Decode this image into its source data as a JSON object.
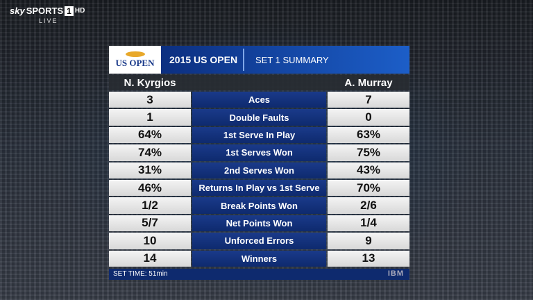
{
  "broadcaster": {
    "brand": "sky",
    "channel": "SPORTS",
    "number": "1",
    "hd": "HD",
    "status": "LIVE"
  },
  "header": {
    "logo": "US OPEN",
    "event": "2015 US OPEN",
    "title": "SET 1 SUMMARY"
  },
  "players": [
    "N. Kyrgios",
    "A. Murray"
  ],
  "table": {
    "rows": [
      [
        "3",
        "Aces",
        "7"
      ],
      [
        "1",
        "Double Faults",
        "0"
      ],
      [
        "64%",
        "1st Serve In Play",
        "63%"
      ],
      [
        "74%",
        "1st Serves Won",
        "75%"
      ],
      [
        "31%",
        "2nd Serves Won",
        "43%"
      ],
      [
        "46%",
        "Returns In Play vs 1st Serve",
        "70%"
      ],
      [
        "1/2",
        "Break Points Won",
        "2/6"
      ],
      [
        "5/7",
        "Net Points Won",
        "1/4"
      ],
      [
        "10",
        "Unforced Errors",
        "9"
      ],
      [
        "14",
        "Winners",
        "13"
      ]
    ]
  },
  "footer": {
    "set_time": "SET TIME: 51min",
    "sponsor": "IBM"
  }
}
